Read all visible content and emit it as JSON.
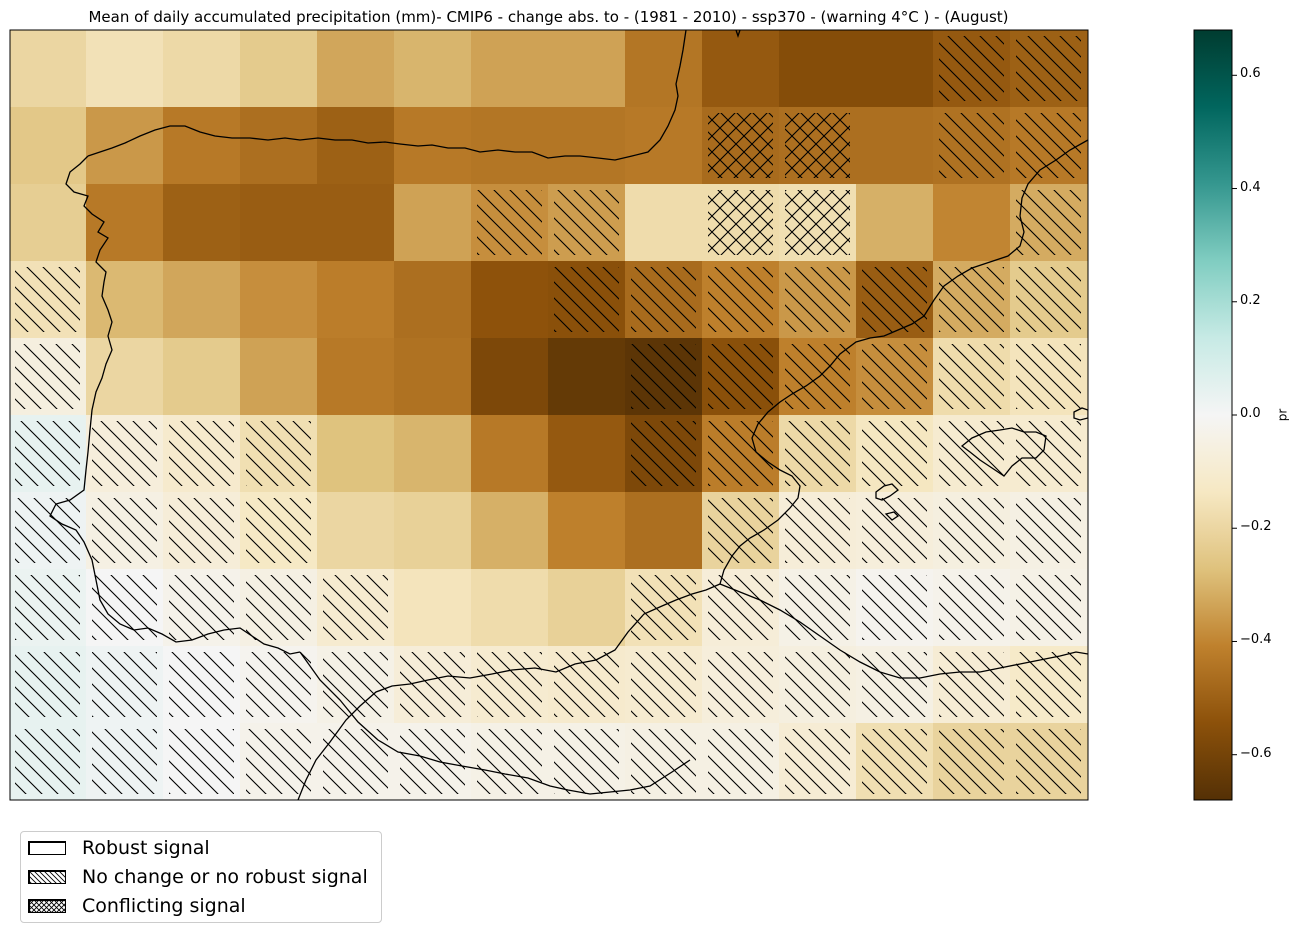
{
  "title": "Mean of daily accumulated precipitation (mm)- CMIP6 - change abs. to - (1981 - 2010)  - ssp370  - (warning 4°C ) - (August)",
  "colorbar": {
    "label": "pr",
    "vmin": -0.68,
    "vmax": 0.68,
    "ticks": [
      0.6,
      0.4,
      0.2,
      0.0,
      -0.2,
      -0.4,
      -0.6
    ],
    "tick_labels": [
      "0.6",
      "0.4",
      "0.2",
      "0.0",
      "−0.2",
      "−0.4",
      "−0.6"
    ],
    "colormap": "BrBG"
  },
  "legend": {
    "items": [
      {
        "label": "Robust signal",
        "pattern": "none"
      },
      {
        "label": "No change or no robust signal",
        "pattern": "diagonal-hatch"
      },
      {
        "label": "Conflicting signal",
        "pattern": "cross-hatch"
      }
    ]
  },
  "map_data": {
    "grid_values": [
      [
        -0.2,
        -0.16,
        -0.19,
        -0.24,
        -0.33,
        -0.3,
        -0.34,
        -0.34,
        -0.44,
        -0.52,
        -0.56,
        -0.56,
        -0.52,
        -0.5
      ],
      [
        -0.25,
        -0.36,
        -0.43,
        -0.46,
        -0.5,
        -0.43,
        -0.44,
        -0.44,
        -0.43,
        -0.47,
        -0.46,
        -0.46,
        -0.45,
        -0.43
      ],
      [
        -0.23,
        -0.43,
        -0.5,
        -0.51,
        -0.51,
        -0.34,
        -0.38,
        -0.35,
        -0.18,
        -0.18,
        -0.17,
        -0.31,
        -0.4,
        -0.32
      ],
      [
        -0.16,
        -0.29,
        -0.33,
        -0.38,
        -0.42,
        -0.46,
        -0.54,
        -0.55,
        -0.47,
        -0.41,
        -0.36,
        -0.51,
        -0.32,
        -0.24
      ],
      [
        -0.06,
        -0.2,
        -0.24,
        -0.34,
        -0.43,
        -0.45,
        -0.58,
        -0.64,
        -0.66,
        -0.55,
        -0.41,
        -0.38,
        -0.18,
        -0.15
      ],
      [
        0.04,
        -0.07,
        -0.11,
        -0.17,
        -0.27,
        -0.3,
        -0.43,
        -0.52,
        -0.58,
        -0.42,
        -0.19,
        -0.14,
        -0.1,
        -0.1
      ],
      [
        0.02,
        -0.05,
        -0.08,
        -0.13,
        -0.2,
        -0.22,
        -0.31,
        -0.41,
        -0.46,
        -0.21,
        -0.08,
        -0.07,
        -0.06,
        -0.05
      ],
      [
        0.03,
        0.0,
        -0.03,
        -0.05,
        -0.1,
        -0.15,
        -0.18,
        -0.22,
        -0.16,
        -0.08,
        -0.04,
        -0.02,
        -0.03,
        -0.04
      ],
      [
        0.04,
        0.02,
        0.0,
        -0.02,
        -0.04,
        -0.08,
        -0.1,
        -0.11,
        -0.1,
        -0.07,
        -0.06,
        -0.05,
        -0.09,
        -0.12
      ],
      [
        0.04,
        0.02,
        0.0,
        -0.03,
        -0.03,
        -0.03,
        -0.04,
        -0.04,
        -0.05,
        -0.05,
        -0.09,
        -0.17,
        -0.21,
        -0.21
      ]
    ],
    "significance_mask": [
      "RRRRRRRRRRRRNN",
      "RRRRRRRRRCCRNN",
      "RRRRRRNNRCCRRN",
      "NRRRRRRNNNNNNN",
      "NRRRRRRRNNNNNN",
      "NNNNRRRRNNNNNN",
      "NNNNRRRRRNNNNN",
      "NNNNNRRRNNNNNN",
      "NNNNNNNNNNNNNN",
      "NNNNNNNNNNNNNN"
    ]
  }
}
